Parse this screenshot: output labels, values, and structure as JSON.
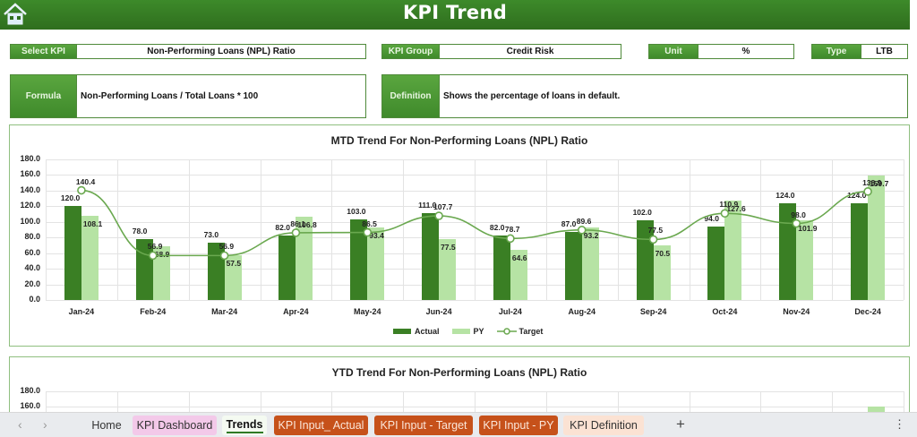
{
  "header": {
    "title": "KPI Trend",
    "home_icon": "home-icon"
  },
  "fields": {
    "select_kpi": {
      "label": "Select KPI",
      "value": "Non-Performing Loans (NPL) Ratio"
    },
    "kpi_group": {
      "label": "KPI Group",
      "value": "Credit Risk"
    },
    "unit": {
      "label": "Unit",
      "value": "%"
    },
    "type": {
      "label": "Type",
      "value": "LTB"
    },
    "formula": {
      "label": "Formula",
      "value": "Non-Performing Loans / Total Loans * 100"
    },
    "definition": {
      "label": "Definition",
      "value": "Shows the percentage of loans in default."
    }
  },
  "colors": {
    "actual": "#3a7f24",
    "py": "#b6e3a4",
    "target": "#6aa84f",
    "header": "#2f6e1e"
  },
  "chart_data": [
    {
      "type": "bar",
      "title": "MTD Trend For Non-Performing Loans (NPL) Ratio",
      "xlabel": "",
      "ylabel": "",
      "ylim": [
        0,
        180
      ],
      "yticks": [
        "180.0",
        "160.0",
        "140.0",
        "120.0",
        "100.0",
        "80.0",
        "60.0",
        "40.0",
        "20.0",
        "0.0"
      ],
      "grid": true,
      "legend_position": "bottom",
      "categories": [
        "Jan-24",
        "Feb-24",
        "Mar-24",
        "Apr-24",
        "May-24",
        "Jun-24",
        "Jul-24",
        "Aug-24",
        "Sep-24",
        "Oct-24",
        "Nov-24",
        "Dec-24"
      ],
      "series": [
        {
          "name": "Actual",
          "type": "bar",
          "values": [
            120.0,
            78.0,
            73.0,
            82.0,
            103.0,
            111.0,
            82.0,
            87.0,
            102.0,
            94.0,
            124.0,
            124.0
          ]
        },
        {
          "name": "PY",
          "type": "bar",
          "values": [
            108.1,
            68.9,
            57.5,
            106.8,
            93.4,
            77.5,
            64.6,
            93.2,
            70.5,
            127.6,
            101.9,
            159.7
          ]
        },
        {
          "name": "Target",
          "type": "line",
          "values": [
            140.4,
            56.9,
            56.9,
            86.1,
            86.5,
            107.7,
            78.7,
            89.6,
            77.5,
            110.9,
            98.0,
            138.9
          ]
        }
      ],
      "legend": [
        "Actual",
        "PY",
        "Target"
      ]
    },
    {
      "type": "bar",
      "title": "YTD Trend For Non-Performing Loans (NPL) Ratio",
      "ylim": [
        0,
        180
      ],
      "yticks_visible": [
        "180.0",
        "160.0"
      ],
      "grid": true,
      "note": "partially visible; cut off by sheet tab bar"
    }
  ],
  "tabbar": {
    "tabs": [
      {
        "label": "Home",
        "style": "plain"
      },
      {
        "label": "KPI Dashboard",
        "style": "pink"
      },
      {
        "label": "Trends",
        "style": "active"
      },
      {
        "label": "KPI Input_ Actual",
        "style": "orange"
      },
      {
        "label": "KPI Input - Target",
        "style": "orange"
      },
      {
        "label": "KPI Input - PY",
        "style": "orange"
      },
      {
        "label": "KPI Definition",
        "style": "peach"
      }
    ],
    "prev": "‹",
    "next": "›",
    "add": "+",
    "more": "⋮"
  }
}
